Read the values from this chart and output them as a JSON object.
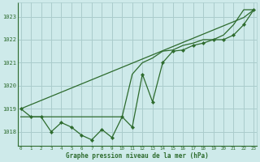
{
  "title": "Graphe pression niveau de la mer (hPa)",
  "bg_color": "#ceeaea",
  "grid_color": "#aacccc",
  "line_color": "#2d6b2d",
  "x_ticks": [
    0,
    1,
    2,
    3,
    4,
    5,
    6,
    7,
    8,
    9,
    10,
    11,
    12,
    13,
    14,
    15,
    16,
    17,
    18,
    19,
    20,
    21,
    22,
    23
  ],
  "ylim": [
    1017.4,
    1023.6
  ],
  "yticks": [
    1018,
    1019,
    1020,
    1021,
    1022,
    1023
  ],
  "series_main": [
    1019.0,
    1018.65,
    1018.65,
    1018.0,
    1018.4,
    1018.2,
    1017.85,
    1017.65,
    1018.1,
    1017.75,
    1018.65,
    1018.2,
    1020.5,
    1019.3,
    1021.0,
    1021.5,
    1021.55,
    1021.75,
    1021.85,
    1022.0,
    1022.0,
    1022.2,
    1022.65,
    1023.3
  ],
  "series_straight": [
    1019.0,
    1019.18,
    1019.36,
    1019.54,
    1019.72,
    1019.9,
    1020.08,
    1020.26,
    1020.44,
    1020.62,
    1020.8,
    1020.98,
    1021.16,
    1021.34,
    1021.52,
    1021.7,
    1021.88,
    1022.06,
    1022.24,
    1022.42,
    1022.6,
    1022.78,
    1022.96,
    1023.3
  ],
  "series_flat": [
    1018.65,
    1018.65,
    1018.65,
    1018.65,
    1018.65,
    1018.65,
    1018.65,
    1018.65,
    1018.65,
    1018.65,
    1018.65,
    1020.5,
    1021.0,
    1021.2,
    1021.5,
    1021.55,
    1021.75,
    1021.85,
    1022.0,
    1022.0,
    1022.2,
    1022.65,
    1023.3,
    1023.3
  ]
}
